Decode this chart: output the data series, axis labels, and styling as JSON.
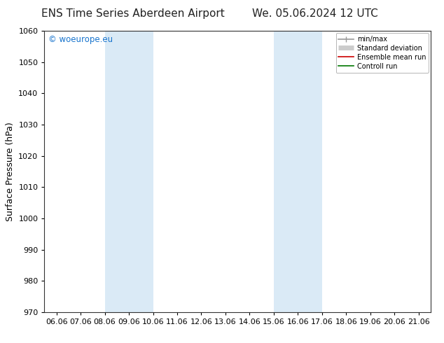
{
  "title_left": "ENS Time Series Aberdeen Airport",
  "title_right": "We. 05.06.2024 12 UTC",
  "ylabel": "Surface Pressure (hPa)",
  "ylim": [
    970,
    1060
  ],
  "yticks": [
    970,
    980,
    990,
    1000,
    1010,
    1020,
    1030,
    1040,
    1050,
    1060
  ],
  "xtick_labels": [
    "06.06",
    "07.06",
    "08.06",
    "09.06",
    "10.06",
    "11.06",
    "12.06",
    "13.06",
    "14.06",
    "15.06",
    "16.06",
    "17.06",
    "18.06",
    "19.06",
    "20.06",
    "21.06"
  ],
  "xtick_positions": [
    0,
    1,
    2,
    3,
    4,
    5,
    6,
    7,
    8,
    9,
    10,
    11,
    12,
    13,
    14,
    15
  ],
  "xlim": [
    -0.5,
    15.5
  ],
  "shaded_regions": [
    {
      "xmin": 2,
      "xmax": 4,
      "color": "#daeaf6"
    },
    {
      "xmin": 9,
      "xmax": 11,
      "color": "#daeaf6"
    }
  ],
  "watermark_text": "© woeurope.eu",
  "watermark_color": "#1874CD",
  "legend_entries": [
    {
      "label": "min/max",
      "color": "#999999",
      "lw": 1.2
    },
    {
      "label": "Standard deviation",
      "color": "#cccccc",
      "lw": 5
    },
    {
      "label": "Ensemble mean run",
      "color": "#cc0000",
      "lw": 1.2
    },
    {
      "label": "Controll run",
      "color": "#007700",
      "lw": 1.2
    }
  ],
  "bg_color": "#ffffff",
  "title_fontsize": 11,
  "axis_label_fontsize": 9,
  "tick_fontsize": 8,
  "watermark_fontsize": 8.5
}
